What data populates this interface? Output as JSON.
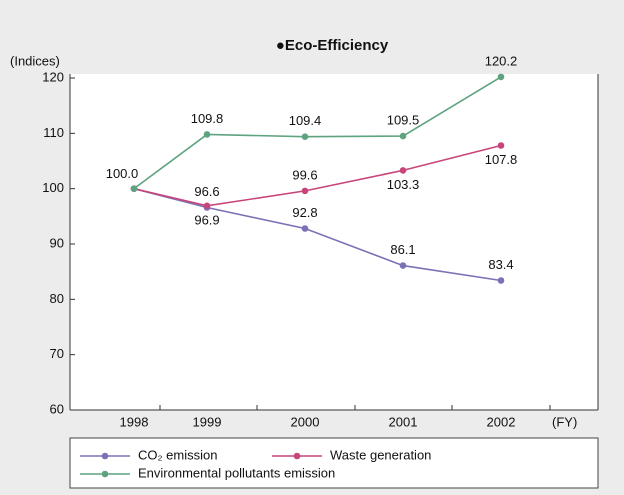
{
  "chart_data": {
    "type": "line",
    "title": "●Eco-Efficiency",
    "y_label": "(Indices)",
    "x_label": "(FY)",
    "categories": [
      "1998",
      "1999",
      "2000",
      "2001",
      "2002"
    ],
    "series": [
      {
        "name": "CO₂ emission",
        "color": "#7a72b6",
        "values": [
          100.0,
          96.6,
          92.8,
          86.1,
          83.4
        ],
        "value_labels": [
          "100.0",
          "96.6",
          "92.8",
          "86.1",
          "83.4"
        ]
      },
      {
        "name": "Waste generation",
        "color": "#c8457b",
        "values": [
          100.0,
          96.9,
          99.6,
          103.3,
          107.8
        ],
        "value_labels": [
          null,
          "96.9",
          "99.6",
          "103.3",
          "107.8"
        ]
      },
      {
        "name": "Environmental pollutants emission",
        "color": "#5ea37f",
        "values": [
          100.0,
          109.8,
          109.4,
          109.5,
          120.2
        ],
        "value_labels": [
          null,
          "109.8",
          "109.4",
          "109.5",
          "120.2"
        ]
      }
    ],
    "ylim": [
      60,
      120
    ],
    "yticks": [
      60,
      70,
      80,
      90,
      100,
      110,
      120
    ]
  }
}
